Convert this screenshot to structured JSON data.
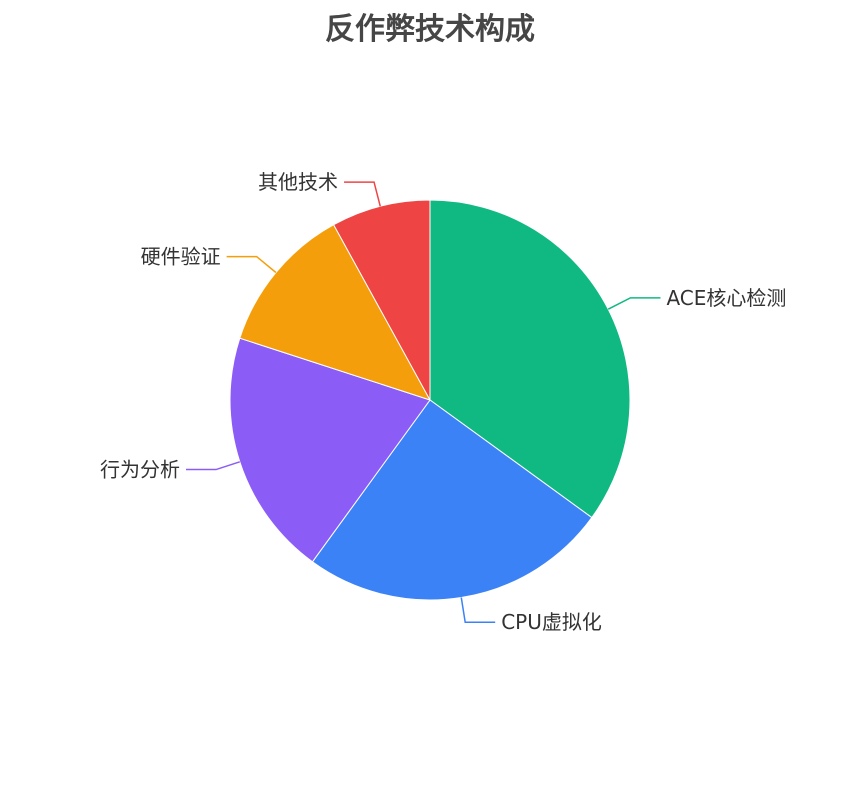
{
  "chart_data": {
    "type": "pie",
    "title": "反作弊技术构成",
    "categories": [
      "ACE核心检测",
      "CPU虚拟化",
      "行为分析",
      "硬件验证",
      "其他技术"
    ],
    "values": [
      35,
      25,
      20,
      12,
      8
    ],
    "colors": [
      "#10b981",
      "#3b82f6",
      "#8b5cf6",
      "#f59e0b",
      "#ef4444"
    ],
    "start_angle": "top",
    "direction": "clockwise",
    "legend": "none",
    "labels": "outside with leader lines"
  }
}
